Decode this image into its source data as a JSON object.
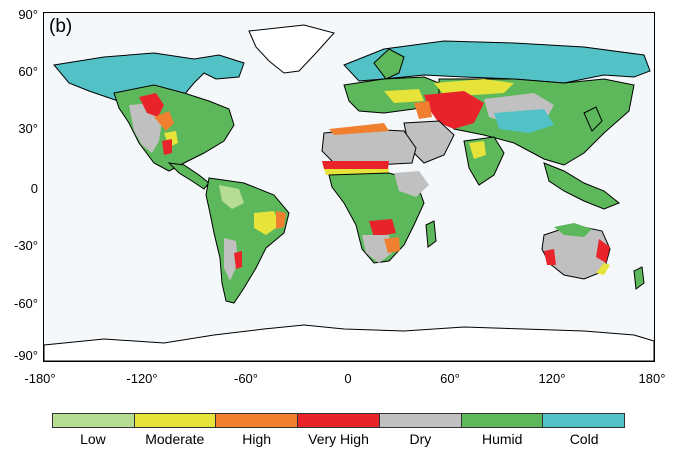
{
  "panel_label": "(b)",
  "y_ticks": [
    "90°",
    "60°",
    "30°",
    "0",
    "-30°",
    "-60°",
    "-90°"
  ],
  "x_ticks": [
    "-180°",
    "-120°",
    "-60°",
    "0",
    "60°",
    "120°",
    "180°"
  ],
  "legend": [
    {
      "label": "Low",
      "color": "#b7dc93"
    },
    {
      "label": "Moderate",
      "color": "#e6e33a"
    },
    {
      "label": "High",
      "color": "#f07f2f"
    },
    {
      "label": "Very High",
      "color": "#e8242a"
    },
    {
      "label": "Dry",
      "color": "#c0c0c0"
    },
    {
      "label": "Humid",
      "color": "#5cb85a"
    },
    {
      "label": "Cold",
      "color": "#52c2c7"
    }
  ],
  "colors": {
    "ocean": "#f4f8fa",
    "ice": "#ffffff",
    "coast": "#000000"
  }
}
